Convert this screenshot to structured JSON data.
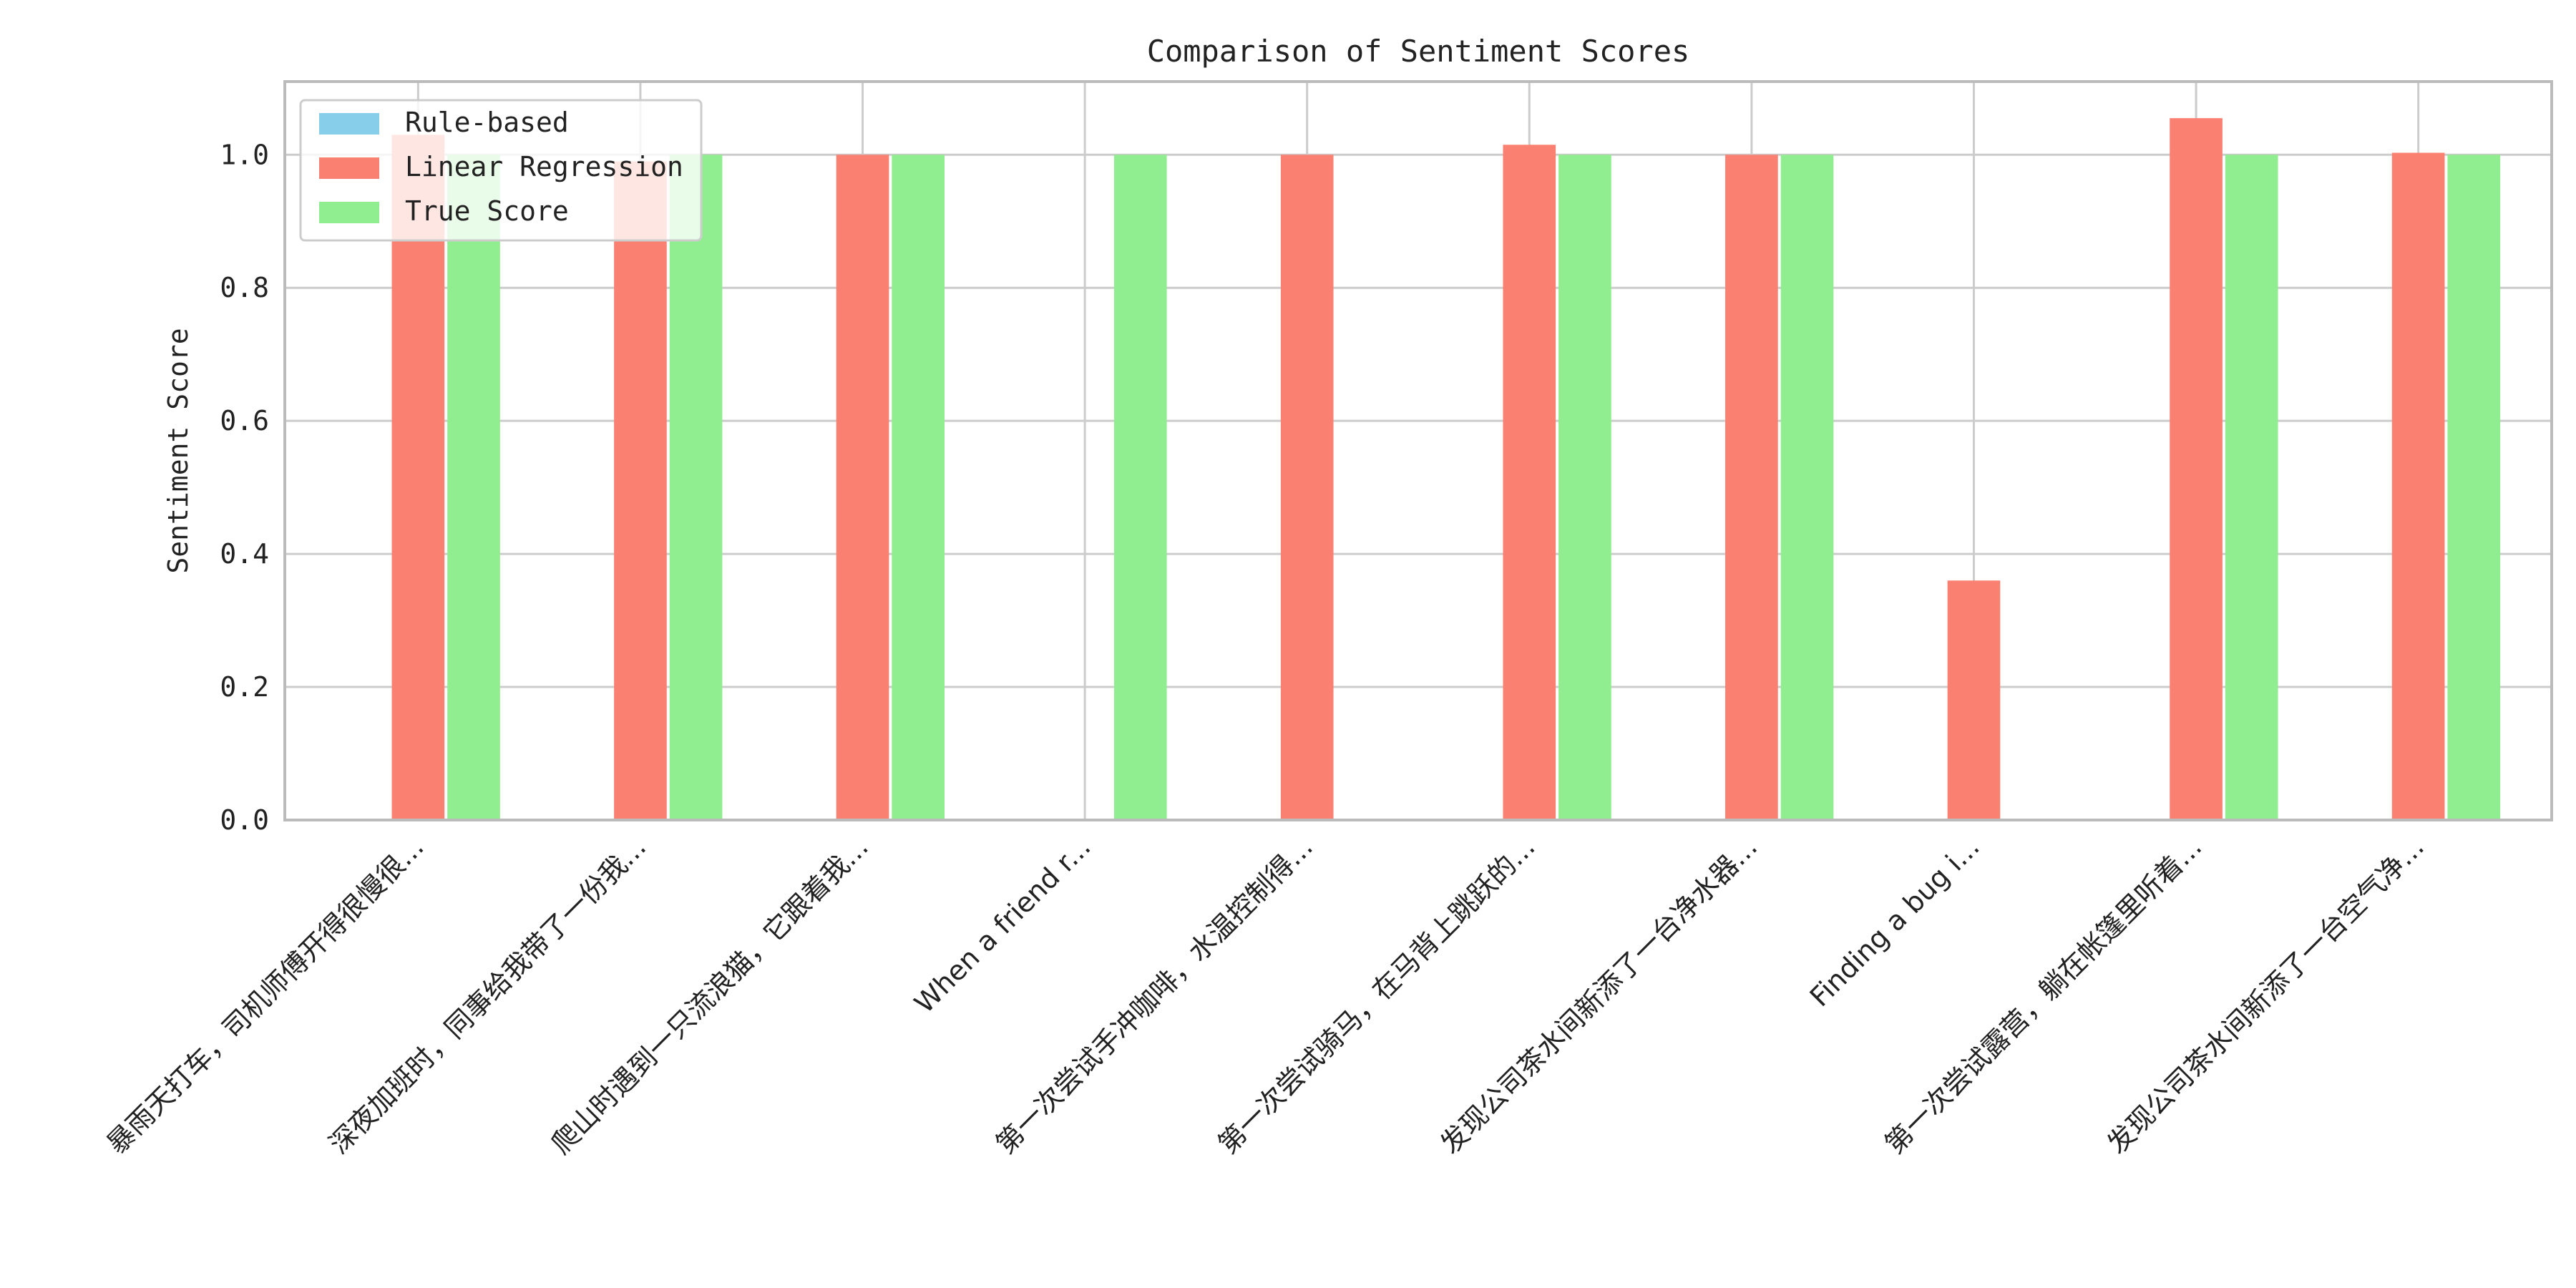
{
  "chart_data": {
    "type": "bar",
    "title": "Comparison of Sentiment Scores",
    "xlabel": "",
    "ylabel": "Sentiment Score",
    "ylim": [
      0,
      1.11
    ],
    "yticks": [
      "0.0",
      "0.2",
      "0.4",
      "0.6",
      "0.8",
      "1.0"
    ],
    "grid": true,
    "legend_position": "top-left",
    "categories": [
      "暴雨天打车，司机师傅开得很慢很...",
      "深夜加班时，同事给我带了一份我...",
      "爬山时遇到一只流浪猫，它跟着我...",
      "When a friend r...",
      "第一次尝试手冲咖啡，水温控制得...",
      "第一次尝试骑马，在马背上跳跃的...",
      "发现公司茶水间新添了一台净水器...",
      "Finding a bug i...",
      "第一次尝试露营，躺在帐篷里听着...",
      "发现公司茶水间新添了一台空气净..."
    ],
    "series": [
      {
        "name": "Rule-based",
        "color": "#87ceeb",
        "values": [
          0,
          0,
          0,
          0,
          0,
          0,
          0,
          0,
          0,
          0
        ]
      },
      {
        "name": "Linear Regression",
        "color": "#fa8072",
        "values": [
          1.03,
          0.99,
          1.0,
          0,
          1.0,
          1.015,
          1.0,
          0.36,
          1.055,
          1.003
        ]
      },
      {
        "name": "True Score",
        "color": "#90ee90",
        "values": [
          1.0,
          1.0,
          1.0,
          1.0,
          0,
          1.0,
          1.0,
          0,
          1.0,
          1.0
        ]
      }
    ]
  }
}
